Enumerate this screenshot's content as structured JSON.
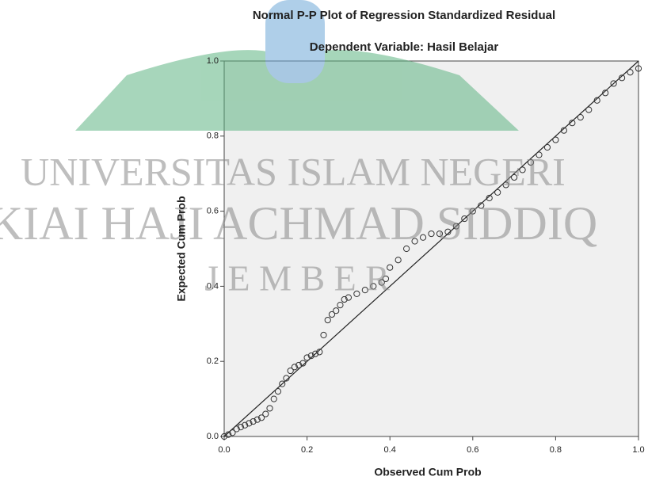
{
  "chart_data": {
    "type": "scatter",
    "title": "Normal P-P Plot of Regression Standardized Residual",
    "subtitle": "Dependent Variable: Hasil Belajar",
    "x_label": "Observed Cum Prob",
    "y_label": "Expected Cum Prob",
    "x": [
      0.0,
      0.01,
      0.02,
      0.03,
      0.04,
      0.05,
      0.06,
      0.07,
      0.08,
      0.09,
      0.1,
      0.11,
      0.12,
      0.13,
      0.14,
      0.15,
      0.16,
      0.17,
      0.18,
      0.19,
      0.2,
      0.21,
      0.22,
      0.23,
      0.24,
      0.25,
      0.26,
      0.27,
      0.28,
      0.29,
      0.3,
      0.32,
      0.34,
      0.36,
      0.38,
      0.39,
      0.4,
      0.42,
      0.44,
      0.46,
      0.48,
      0.5,
      0.52,
      0.54,
      0.56,
      0.58,
      0.6,
      0.62,
      0.64,
      0.66,
      0.68,
      0.7,
      0.72,
      0.74,
      0.76,
      0.78,
      0.8,
      0.82,
      0.84,
      0.86,
      0.88,
      0.9,
      0.92,
      0.94,
      0.96,
      0.98,
      1.0
    ],
    "values": [
      0.0,
      0.005,
      0.01,
      0.02,
      0.025,
      0.03,
      0.035,
      0.04,
      0.045,
      0.05,
      0.06,
      0.075,
      0.1,
      0.12,
      0.14,
      0.155,
      0.175,
      0.185,
      0.19,
      0.195,
      0.21,
      0.215,
      0.22,
      0.225,
      0.27,
      0.31,
      0.325,
      0.335,
      0.35,
      0.365,
      0.37,
      0.38,
      0.39,
      0.4,
      0.41,
      0.42,
      0.45,
      0.47,
      0.5,
      0.52,
      0.53,
      0.54,
      0.54,
      0.545,
      0.56,
      0.58,
      0.6,
      0.615,
      0.635,
      0.65,
      0.67,
      0.69,
      0.71,
      0.73,
      0.75,
      0.77,
      0.79,
      0.815,
      0.835,
      0.85,
      0.87,
      0.895,
      0.915,
      0.94,
      0.955,
      0.97,
      0.98
    ],
    "xlim": [
      0,
      1
    ],
    "ylim": [
      0,
      1
    ],
    "xticks": [
      {
        "value": 0,
        "label": "0.0"
      },
      0.2,
      0.4,
      0.6,
      0.8,
      {
        "value": 1,
        "label": "1.0"
      }
    ],
    "yticks": [
      {
        "value": 0,
        "label": "0.0"
      },
      0.2,
      0.4,
      0.6,
      0.8,
      {
        "value": 1,
        "label": "1.0"
      }
    ],
    "color": "#333333",
    "background": "#f0f0f0",
    "watermark": [
      "UNIVERSITAS ISLAM NEGERI",
      "KIAI HAJI ACHMAD SIDDIQ",
      "J E M B E R"
    ]
  }
}
